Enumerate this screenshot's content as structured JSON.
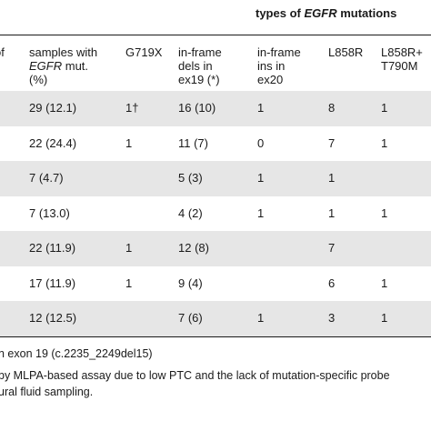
{
  "table": {
    "group_header_prefix": "types of ",
    "group_header_gene": "EGFR",
    "group_header_suffix": " mutations",
    "columns": [
      {
        "line1": "of",
        "line2": "",
        "line3": ""
      },
      {
        "line1": "samples with",
        "line2_italic": "EGFR",
        "line2_rest": " mut.",
        "line3": "(%)"
      },
      {
        "line1": "G719X",
        "line2": "",
        "line3": ""
      },
      {
        "line1": "in-frame",
        "line2": "dels in",
        "line3": "ex19 (*)"
      },
      {
        "line1": "in-frame",
        "line2": "ins in",
        "line3": "ex20"
      },
      {
        "line1": "L858R",
        "line2": "",
        "line3": ""
      },
      {
        "line1": "L858R+",
        "line2": "T790M",
        "line3": ""
      }
    ],
    "rows": [
      {
        "cells": [
          "",
          "29 (12.1)",
          "1†",
          "16 (10)",
          "1",
          "8",
          "1"
        ]
      },
      {
        "cells": [
          "",
          "22 (24.4)",
          "1",
          "11 (7)",
          "0",
          "7",
          "1"
        ]
      },
      {
        "cells": [
          "",
          "7 (4.7)",
          "",
          "5 (3)",
          "1",
          "1",
          ""
        ]
      },
      {
        "cells": [
          "",
          "7 (13.0)",
          "",
          "4 (2)",
          "1",
          "1",
          "1"
        ]
      },
      {
        "cells": [
          "",
          "22 (11.9)",
          "1",
          "12 (8)",
          "",
          "7",
          ""
        ]
      },
      {
        "cells": [
          "",
          "17 (11.9)",
          "1",
          "9 (4)",
          "",
          "6",
          "1"
        ]
      },
      {
        "cells": [
          "",
          "12 (12.5)",
          "",
          "7 (6)",
          "1",
          "3",
          "1"
        ]
      }
    ]
  },
  "footnotes": [
    "n exon 19 (c.2235_2249del15)",
    "by MLPA-based assay due to low PTC and the lack of mutation-specific probe",
    "ural fluid sampling."
  ]
}
